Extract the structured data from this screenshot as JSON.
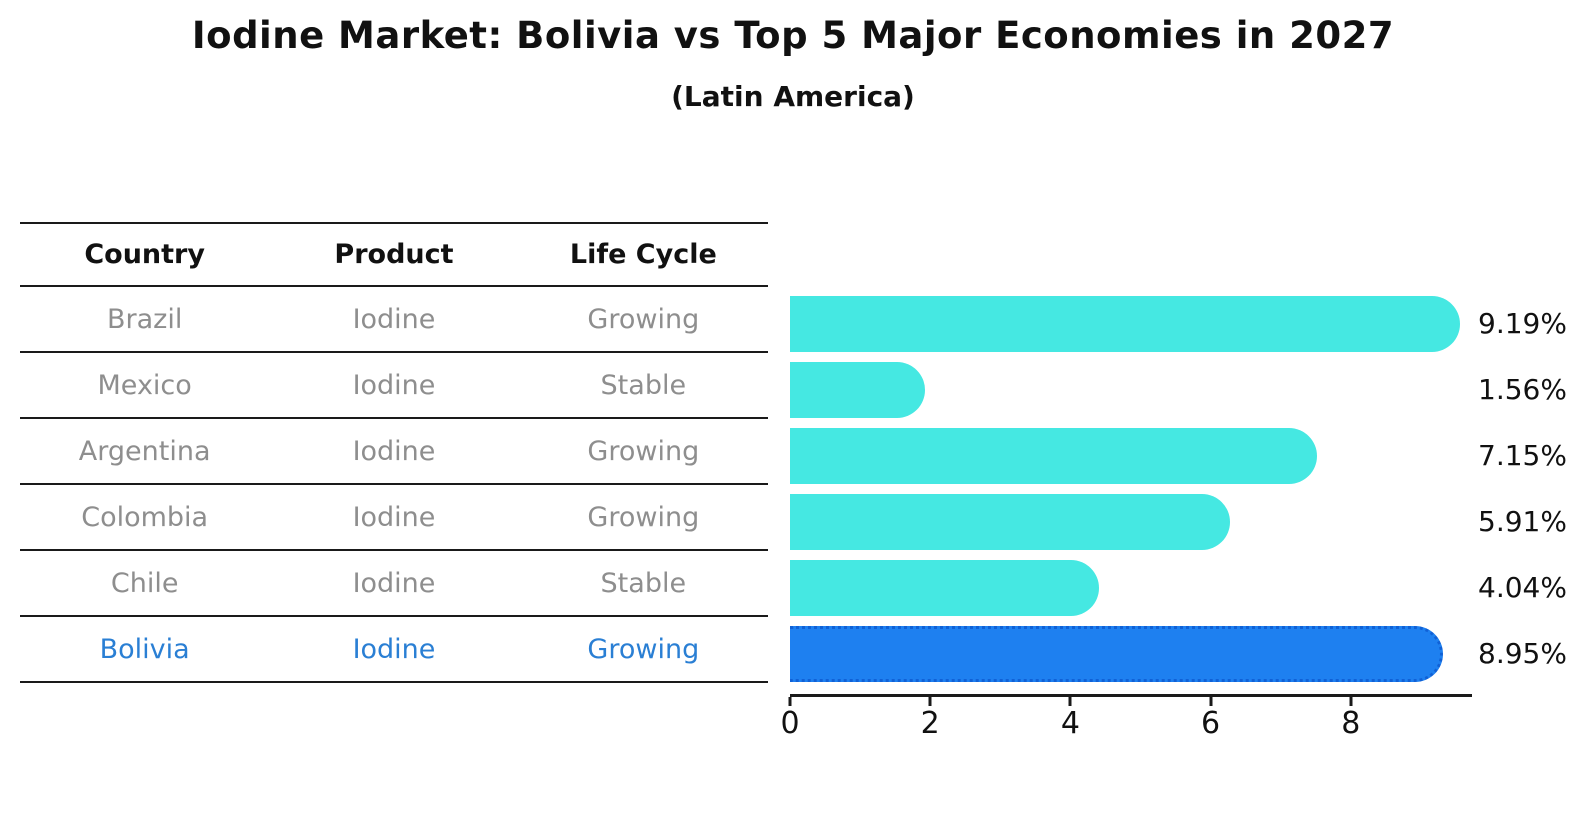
{
  "title": "Iodine Market: Bolivia vs Top 5 Major Economies in 2027",
  "subtitle": "(Latin America)",
  "table": {
    "headers": [
      "Country",
      "Product",
      "Life Cycle"
    ],
    "rows": [
      {
        "country": "Brazil",
        "product": "Iodine",
        "life_cycle": "Growing"
      },
      {
        "country": "Mexico",
        "product": "Iodine",
        "life_cycle": "Stable"
      },
      {
        "country": "Argentina",
        "product": "Iodine",
        "life_cycle": "Growing"
      },
      {
        "country": "Colombia",
        "product": "Iodine",
        "life_cycle": "Growing"
      },
      {
        "country": "Chile",
        "product": "Iodine",
        "life_cycle": "Stable"
      },
      {
        "country": "Bolivia",
        "product": "Iodine",
        "life_cycle": "Growing"
      }
    ],
    "highlight_row": "Bolivia"
  },
  "chart_data": {
    "type": "bar",
    "orientation": "horizontal",
    "title": "Iodine Market: Bolivia vs Top 5 Major Economies in 2027 (Latin America)",
    "categories": [
      "Brazil",
      "Mexico",
      "Argentina",
      "Colombia",
      "Chile",
      "Bolivia"
    ],
    "values": [
      9.19,
      1.56,
      7.15,
      5.91,
      4.04,
      8.95
    ],
    "value_labels": [
      "9.19%",
      "1.56%",
      "7.15%",
      "5.91%",
      "4.04%",
      "8.95%"
    ],
    "xticks": [
      0,
      2,
      4,
      6,
      8
    ],
    "xtick_labels": [
      "0",
      "2",
      "4",
      "6",
      "8"
    ],
    "xlim": [
      0,
      9.7
    ],
    "xlabel": "",
    "ylabel": "",
    "grid": false,
    "legend": "none",
    "bar_color": "#45E8E2",
    "highlight_bar_color": "#1E80F0",
    "highlight_index": 5,
    "highlight_edge_style": "dotted"
  },
  "colors": {
    "row_text": "#8e8e8e",
    "highlight_text": "#2a7fd4",
    "header_text": "#111111",
    "axis": "#1a1a1a"
  }
}
